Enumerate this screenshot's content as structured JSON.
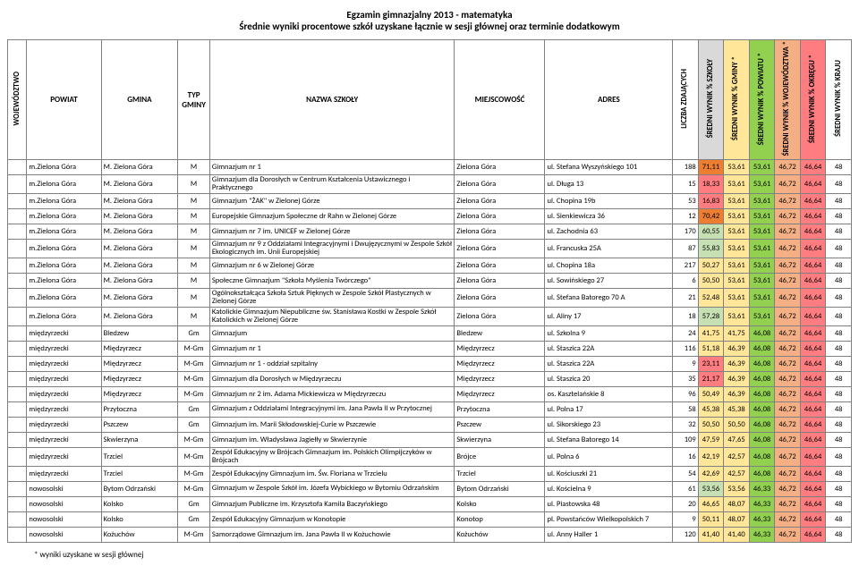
{
  "titles": {
    "line1": "Egzamin gimnazjalny 2013 - matematyka",
    "line2": "Średnie wyniki procentowe szkół uzyskane łącznie w sesji głównej oraz terminie dodatkowym"
  },
  "footnote": "* wyniki uzyskane w sesji głównej",
  "headers": [
    "WOJEWÓDZTWO",
    "POWIAT",
    "GMINA",
    "TYP GMINY",
    "NAZWA SZKOŁY",
    "MIEJSCOWOŚĆ",
    "ADRES",
    "LICZBA ZDAJĄCYCH",
    "ŚREDNI WYNIK % SZKOŁY",
    "ŚREDNI WYNIK % GMINY *",
    "ŚREDNI WYNIK % POWIATU *",
    "ŚREDNI WYNIK % WOJEWÓDZTWA *",
    "ŚREDNI WYNIK % OKRĘGU *",
    "ŚREDNI WYNIK % KRAJU"
  ],
  "header_colors": [
    "c-white",
    "c-white",
    "c-white",
    "c-white",
    "c-white",
    "c-white",
    "c-white",
    "c-white",
    "c-gray",
    "c-yell",
    "c-green",
    "c-orange",
    "c-red",
    "c-white"
  ],
  "rows": [
    {
      "w": "m.Zielona Góra",
      "p": "M. Zielona Góra",
      "g": "M",
      "s": "Gimnazjum nr 1",
      "m": "Zielona Góra",
      "a": "ul. Stefana Wyszyńskiego 101",
      "n": "188",
      "v": [
        "71,11",
        "53,61",
        "53,61",
        "46,72",
        "46,64",
        "48"
      ],
      "cc": "c-dorange"
    },
    {
      "w": "m.Zielona Góra",
      "p": "M. Zielona Góra",
      "g": "M",
      "s": "Gimnazjum dla Dorosłych w Centrum Kształcenia Ustawicznego i Praktycznego",
      "m": "Zielona Góra",
      "a": "ul. Długa 13",
      "n": "15",
      "v": [
        "18,33",
        "53,61",
        "53,61",
        "46,72",
        "46,64",
        "48"
      ],
      "cc": "c-red",
      "wrap": true
    },
    {
      "w": "m.Zielona Góra",
      "p": "M. Zielona Góra",
      "g": "M",
      "s": "Gimnazjum \"ŻAK\" w Zielonej Górze",
      "m": "Zielona Góra",
      "a": "ul. Chopina 19b",
      "n": "53",
      "v": [
        "16,83",
        "53,61",
        "53,61",
        "46,72",
        "46,64",
        "48"
      ],
      "cc": "c-red"
    },
    {
      "w": "m.Zielona Góra",
      "p": "M. Zielona Góra",
      "g": "M",
      "s": "Europejskie Gimnazjum Społeczne dr Rahn w Zielonej Górze",
      "m": "Zielona Góra",
      "a": "ul. Sienkiewicza 36",
      "n": "12",
      "v": [
        "70,42",
        "53,61",
        "53,61",
        "46,72",
        "46,64",
        "48"
      ],
      "cc": "c-dorange"
    },
    {
      "w": "m.Zielona Góra",
      "p": "M. Zielona Góra",
      "g": "M",
      "s": "Gimnazjum nr 7 im. UNICEF w Zielonej Górze",
      "m": "Zielona Góra",
      "a": "ul. Zachodnia 63",
      "n": "170",
      "v": [
        "60,55",
        "53,61",
        "53,61",
        "46,72",
        "46,64",
        "48"
      ],
      "cc": "c-lgreen"
    },
    {
      "w": "m.Zielona Góra",
      "p": "M. Zielona Góra",
      "g": "M",
      "s": "Gimnazjum nr 9 z Oddziałami Integracyjnymi i Dwujęzycznymi w Zespole Szkół Ekologicznych im. Unii Europejskiej",
      "m": "Zielona Góra",
      "a": "ul. Francuska 25A",
      "n": "87",
      "v": [
        "55,83",
        "53,61",
        "53,61",
        "46,72",
        "46,64",
        "48"
      ],
      "cc": "c-lgreen",
      "wrap": true
    },
    {
      "w": "m.Zielona Góra",
      "p": "M. Zielona Góra",
      "g": "M",
      "s": "Gimnazjum nr 6 w Zielonej Górze",
      "m": "Zielona Góra",
      "a": "ul. Chopina 18a",
      "n": "217",
      "v": [
        "50,27",
        "53,61",
        "53,61",
        "46,72",
        "46,64",
        "48"
      ],
      "cc": "c-yell"
    },
    {
      "w": "m.Zielona Góra",
      "p": "M. Zielona Góra",
      "g": "M",
      "s": "Społeczne Gimnazjum \"Szkoła Myślenia Twórczego\"",
      "m": "Zielona Góra",
      "a": "ul. Sowińskiego 27",
      "n": "6",
      "v": [
        "50,50",
        "53,61",
        "53,61",
        "46,72",
        "46,64",
        "48"
      ],
      "cc": "c-yell"
    },
    {
      "w": "m.Zielona Góra",
      "p": "M. Zielona Góra",
      "g": "M",
      "s": "Ogólnokształcąca Szkoła Sztuk Pięknych w Zespole Szkół Plastycznych w Zielonej Górze",
      "m": "Zielona Góra",
      "a": "ul. Stefana Batorego 70 A",
      "n": "21",
      "v": [
        "52,48",
        "53,61",
        "53,61",
        "46,72",
        "46,64",
        "48"
      ],
      "cc": "c-yell",
      "wrap": true
    },
    {
      "w": "m.Zielona Góra",
      "p": "M. Zielona Góra",
      "g": "M",
      "s": "Katolickie Gimnazjum Niepubliczne św. Stanisława Kostki w Zespole Szkół Katolickich w Zielonej Górze",
      "m": "Zielona Góra",
      "a": "ul. Aliny 17",
      "n": "18",
      "v": [
        "57,28",
        "53,61",
        "53,61",
        "46,72",
        "46,64",
        "48"
      ],
      "cc": "c-lgreen",
      "wrap": true
    },
    {
      "w": "międzyrzecki",
      "p": "Bledzew",
      "g": "Gm",
      "s": "Gimnazjum",
      "m": "Bledzew",
      "a": "ul. Szkolna 9",
      "n": "24",
      "v": [
        "41,75",
        "41,75",
        "46,08",
        "46,72",
        "46,64",
        "48"
      ],
      "cc": "c-yell"
    },
    {
      "w": "międzyrzecki",
      "p": "Międzyrzecz",
      "g": "M-Gm",
      "s": "Gimnazjum nr 1",
      "m": "Międzyrzecz",
      "a": "ul. Staszica 22A",
      "n": "116",
      "v": [
        "51,18",
        "46,39",
        "46,08",
        "46,72",
        "46,64",
        "48"
      ],
      "cc": "c-yell"
    },
    {
      "w": "międzyrzecki",
      "p": "Międzyrzecz",
      "g": "M-Gm",
      "s": "Gimnazjum nr 1 - oddział szpitalny",
      "m": "Międzyrzecz",
      "a": "ul. Staszica 22A",
      "n": "9",
      "v": [
        "23,11",
        "46,39",
        "46,08",
        "46,72",
        "46,64",
        "48"
      ],
      "cc": "c-red"
    },
    {
      "w": "międzyrzecki",
      "p": "Międzyrzecz",
      "g": "M-Gm",
      "s": "Gimnazjum dla Dorosłych w Międzyrzeczu",
      "m": "Międzyrzecz",
      "a": "ul. Staszica 20",
      "n": "35",
      "v": [
        "21,17",
        "46,39",
        "46,08",
        "46,72",
        "46,64",
        "48"
      ],
      "cc": "c-red"
    },
    {
      "w": "międzyrzecki",
      "p": "Międzyrzecz",
      "g": "M-Gm",
      "s": "Gimnazjum nr 2 im. Adama Mickiewicza w Międzyrzeczu",
      "m": "Międzyrzecz",
      "a": "os. Kasztelańskie 8",
      "n": "96",
      "v": [
        "50,49",
        "46,39",
        "46,08",
        "46,72",
        "46,64",
        "48"
      ],
      "cc": "c-yell"
    },
    {
      "w": "międzyrzecki",
      "p": "Przytoczna",
      "g": "Gm",
      "s": "Gimnazjum z Oddziałami Integracyjnymi im. Jana Pawła II w Przytocznej",
      "m": "Przytoczna",
      "a": "ul. Polna 17",
      "n": "58",
      "v": [
        "45,38",
        "45,38",
        "46,08",
        "46,72",
        "46,64",
        "48"
      ],
      "cc": "c-yell",
      "wrap": true
    },
    {
      "w": "międzyrzecki",
      "p": "Pszczew",
      "g": "Gm",
      "s": "Gimnazjum im. Marii Skłodowskiej-Curie w Pszczewie",
      "m": "Pszczew",
      "a": "ul. Sikorskiego 23",
      "n": "32",
      "v": [
        "50,50",
        "50,50",
        "46,08",
        "46,72",
        "46,64",
        "48"
      ],
      "cc": "c-yell"
    },
    {
      "w": "międzyrzecki",
      "p": "Skwierzyna",
      "g": "M-Gm",
      "s": "Gimnazjum im. Władysława Jagiełły w Skwierzynie",
      "m": "Skwierzyna",
      "a": "ul. Stefana Batorego 14",
      "n": "109",
      "v": [
        "47,59",
        "47,65",
        "46,08",
        "46,72",
        "46,64",
        "48"
      ],
      "cc": "c-yell"
    },
    {
      "w": "międzyrzecki",
      "p": "Trzciel",
      "g": "M-Gm",
      "s": "Zespół Edukacyjny w Brójcach Gimnazjum im. Polskich Olimpijczyków w Brójcach",
      "m": "Brójce",
      "a": "ul. Polna 6",
      "n": "16",
      "v": [
        "42,19",
        "42,57",
        "46,08",
        "46,72",
        "46,64",
        "48"
      ],
      "cc": "c-yell",
      "wrap": true
    },
    {
      "w": "międzyrzecki",
      "p": "Trzciel",
      "g": "M-Gm",
      "s": "Zespół Edukacyjny Gimnazjum im. Św. Floriana w Trzcielu",
      "m": "Trzciel",
      "a": "ul. Kościuszki 21",
      "n": "54",
      "v": [
        "42,69",
        "42,57",
        "46,08",
        "46,72",
        "46,64",
        "48"
      ],
      "cc": "c-yell"
    },
    {
      "w": "nowosolski",
      "p": "Bytom Odrzański",
      "g": "M-Gm",
      "s": "Gimnazjum w Zespole Szkół im. Józefa Wybickiego w Bytomiu Odrzańskim",
      "m": "Bytom Odrzański",
      "a": "ul. Kościelna 9",
      "n": "61",
      "v": [
        "53,56",
        "53,56",
        "46,33",
        "46,72",
        "46,64",
        "48"
      ],
      "cc": "c-lgreen",
      "wrap": true
    },
    {
      "w": "nowosolski",
      "p": "Kolsko",
      "g": "Gm",
      "s": "Gimnazjum Publiczne im. Krzysztofa Kamila Baczyńskiego",
      "m": "Kolsko",
      "a": "ul. Piastowska 48",
      "n": "20",
      "v": [
        "46,65",
        "48,07",
        "46,33",
        "46,72",
        "46,64",
        "48"
      ],
      "cc": "c-yell"
    },
    {
      "w": "nowosolski",
      "p": "Kolsko",
      "g": "Gm",
      "s": "Zespół Edukacyjny Gimnazjum w Konotopie",
      "m": "Konotop",
      "a": "pl. Powstańców Wielkopolskich 7",
      "n": "9",
      "v": [
        "50,11",
        "48,07",
        "46,33",
        "46,72",
        "46,64",
        "48"
      ],
      "cc": "c-yell"
    },
    {
      "w": "nowosolski",
      "p": "Kożuchów",
      "g": "M-Gm",
      "s": "Samorządowe Gimnazjum im. Jana Pawła II w Kożuchowie",
      "m": "Kożuchów",
      "a": "ul. Anny Haller 1",
      "n": "120",
      "v": [
        "41,40",
        "41,40",
        "46,33",
        "46,72",
        "46,64",
        "48"
      ],
      "cc": "c-yell"
    }
  ],
  "colcolors": [
    "c-gray",
    "c-yell",
    "c-green",
    "c-orange",
    "c-red",
    "c-white"
  ]
}
